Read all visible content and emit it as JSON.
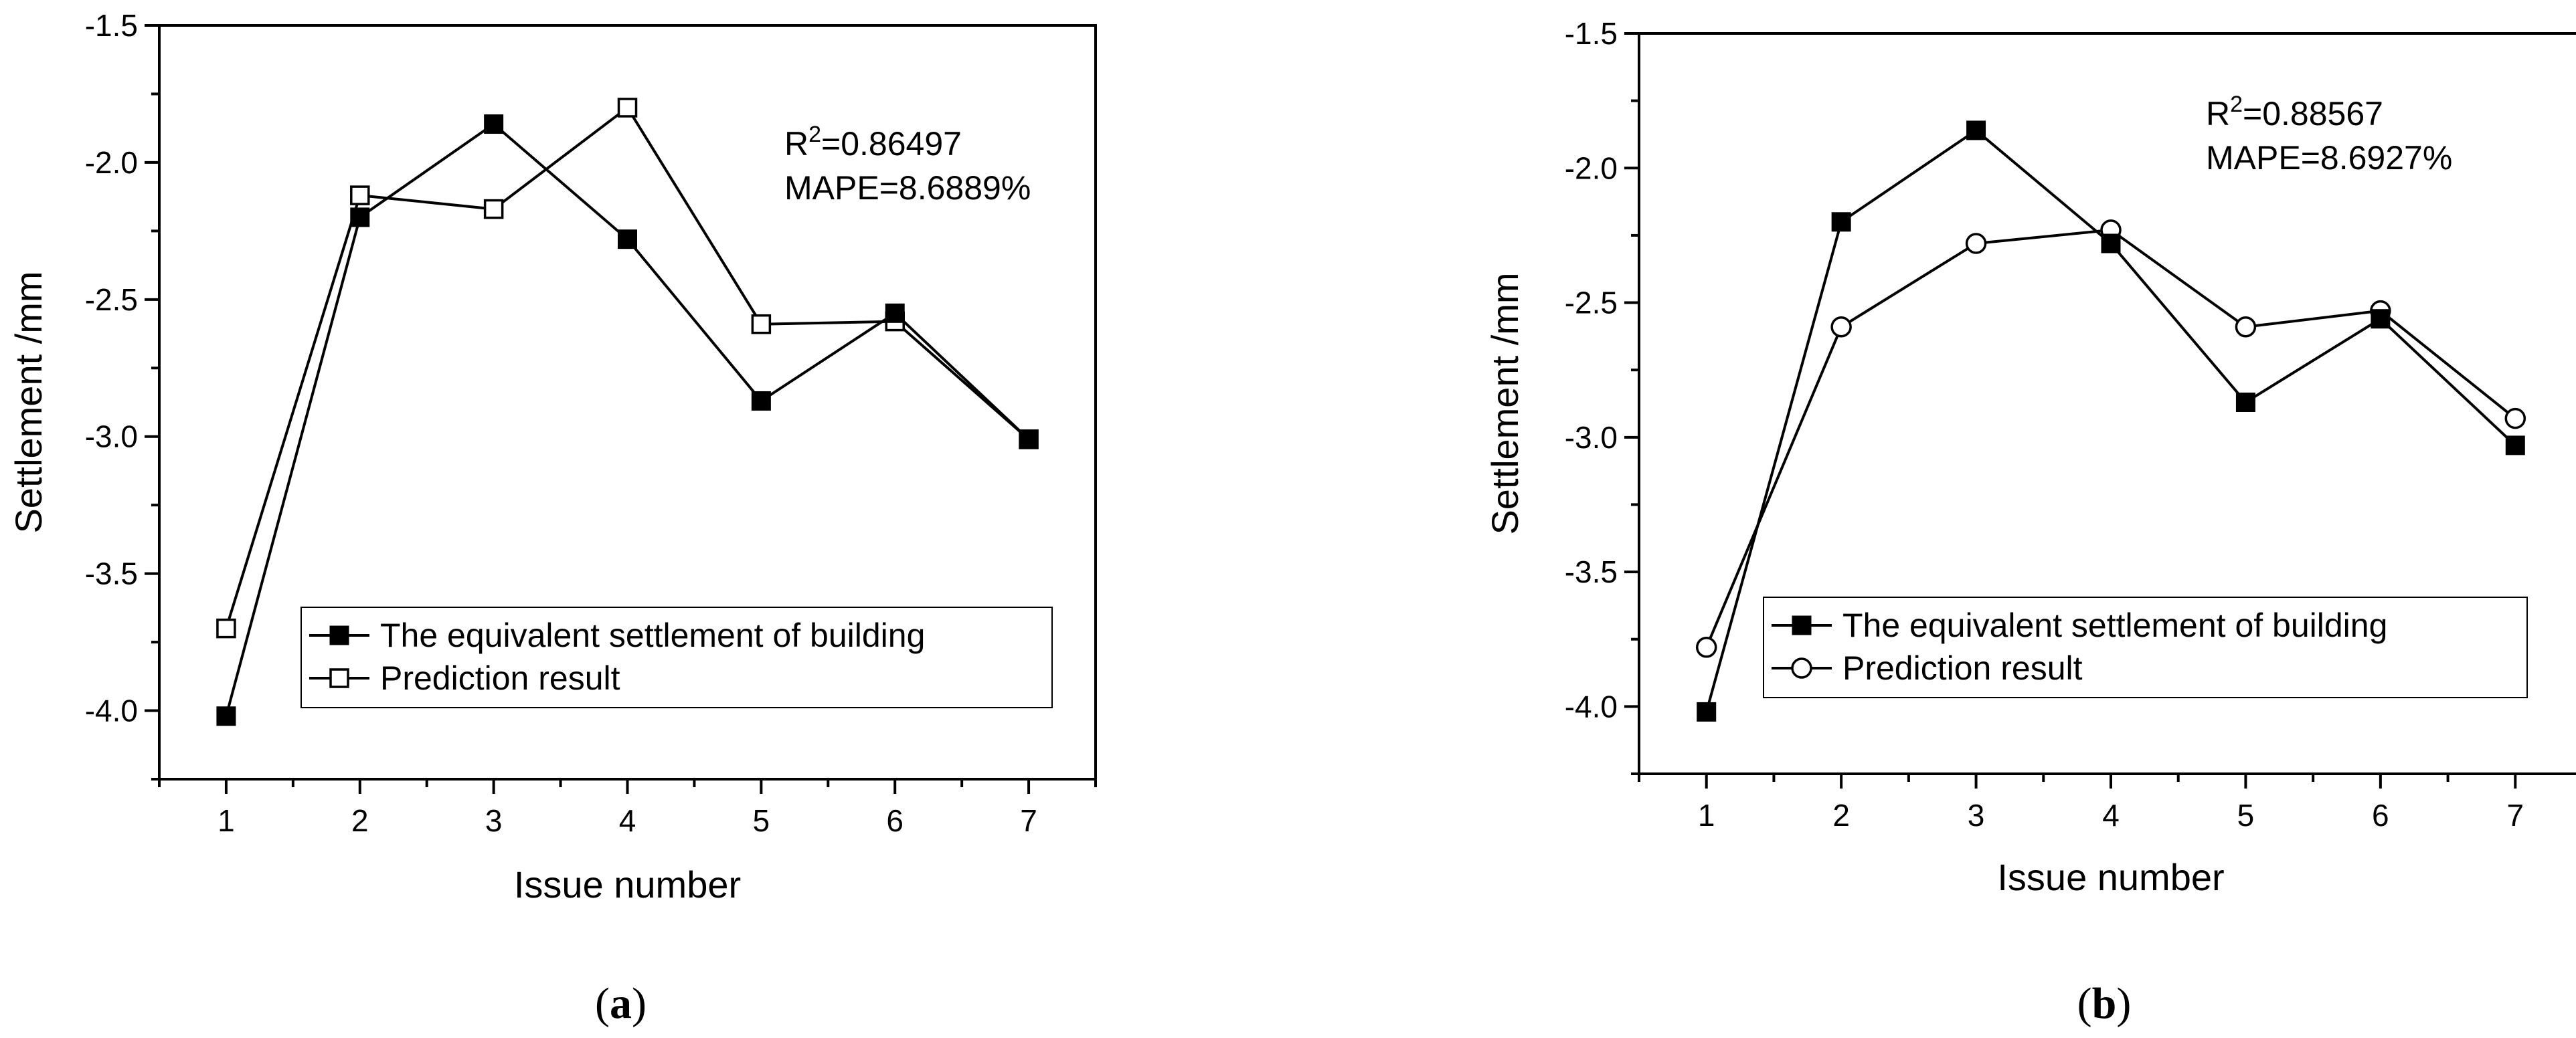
{
  "chart_data": [
    {
      "type": "line",
      "panel": "(a)",
      "caption": {
        "open": "(",
        "letter": "a",
        "close": ")"
      },
      "xlabel": "Issue number",
      "ylabel": "Settlement /mm",
      "xlim": [
        0.5,
        7.5
      ],
      "ylim": [
        -4.25,
        -1.5
      ],
      "x_ticks": [
        1,
        2,
        3,
        4,
        5,
        6,
        7
      ],
      "y_ticks": [
        -4.0,
        -3.5,
        -3.0,
        -2.5,
        -2.0,
        -1.5
      ],
      "y_tick_labels": [
        "-4.0",
        "-3.5",
        "-3.0",
        "-2.5",
        "-2.0",
        "-1.5"
      ],
      "x": [
        1,
        2,
        3,
        4,
        5,
        6,
        7
      ],
      "series": [
        {
          "name": "The equivalent settlement of building",
          "marker": "filled-square",
          "values": [
            -4.02,
            -2.2,
            -1.86,
            -2.28,
            -2.87,
            -2.55,
            -3.01
          ]
        },
        {
          "name": "Prediction result",
          "marker": "open-square",
          "values": [
            -3.7,
            -2.12,
            -2.17,
            -1.8,
            -2.59,
            -2.58,
            -3.01
          ]
        }
      ],
      "annotation": {
        "r_prefix": "R",
        "r_sup": "2",
        "r_value": "=0.86497",
        "mape": "MAPE=8.6889%"
      },
      "legend_position": "bottom-center",
      "grid": false
    },
    {
      "type": "line",
      "panel": "(b)",
      "caption": {
        "open": "(",
        "letter": "b",
        "close": ")"
      },
      "xlabel": "Issue number",
      "ylabel": "Settlement /mm",
      "xlim": [
        0.5,
        7.5
      ],
      "ylim": [
        -4.25,
        -1.5
      ],
      "x_ticks": [
        1,
        2,
        3,
        4,
        5,
        6,
        7
      ],
      "y_ticks": [
        -4.0,
        -3.5,
        -3.0,
        -2.5,
        -2.0,
        -1.5
      ],
      "y_tick_labels": [
        "-4.0",
        "-3.5",
        "-3.0",
        "-2.5",
        "-2.0",
        "-1.5"
      ],
      "x": [
        1,
        2,
        3,
        4,
        5,
        6,
        7
      ],
      "series": [
        {
          "name": "The equivalent settlement of building",
          "marker": "filled-square",
          "values": [
            -4.02,
            -2.2,
            -1.86,
            -2.28,
            -2.87,
            -2.56,
            -3.03
          ]
        },
        {
          "name": "Prediction result",
          "marker": "open-circle",
          "values": [
            -3.78,
            -2.59,
            -2.28,
            -2.23,
            -2.59,
            -2.53,
            -2.93
          ]
        }
      ],
      "annotation": {
        "r_prefix": "R",
        "r_sup": "2",
        "r_value": "=0.88567",
        "mape": "MAPE=8.6927%"
      },
      "legend_position": "bottom-center",
      "grid": false
    }
  ]
}
